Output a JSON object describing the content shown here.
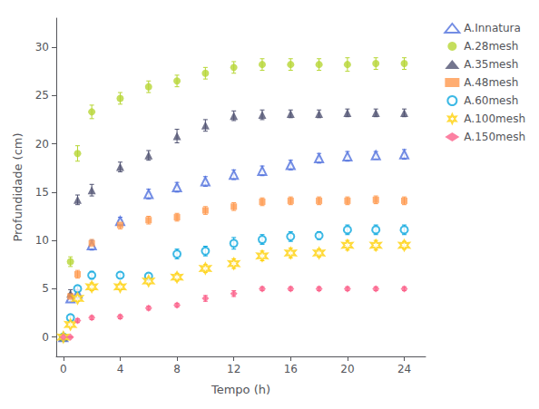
{
  "chart_data": {
    "type": "scatter",
    "xlabel": "Tempo (h)",
    "ylabel": "Profundidade (cm)",
    "xlim": [
      -0.5,
      25.5
    ],
    "ylim": [
      -2,
      33
    ],
    "xticks": [
      0,
      4,
      8,
      12,
      16,
      20,
      24
    ],
    "yticks": [
      0,
      5,
      10,
      15,
      20,
      25,
      30
    ],
    "grid": false,
    "legend": "right",
    "x": [
      0,
      0.5,
      1,
      2,
      4,
      6,
      8,
      10,
      12,
      14,
      16,
      18,
      20,
      22,
      24
    ],
    "series": [
      {
        "name": "A.Innatura",
        "marker": "triangle-open",
        "values": [
          0,
          4.0,
          4.5,
          9.5,
          12.0,
          14.8,
          15.5,
          16.1,
          16.8,
          17.2,
          17.8,
          18.5,
          18.7,
          18.8,
          18.9
        ],
        "yerr": [
          0,
          0.3,
          0.4,
          0.5,
          0.4,
          0.5,
          0.5,
          0.5,
          0.5,
          0.5,
          0.5,
          0.5,
          0.5,
          0.4,
          0.5
        ]
      },
      {
        "name": "A.28mesh",
        "marker": "circle",
        "values": [
          0,
          7.8,
          19.0,
          23.3,
          24.7,
          25.9,
          26.5,
          27.3,
          27.9,
          28.2,
          28.2,
          28.2,
          28.2,
          28.3,
          28.3
        ],
        "yerr": [
          0,
          0.5,
          0.8,
          0.7,
          0.6,
          0.6,
          0.6,
          0.6,
          0.6,
          0.6,
          0.6,
          0.6,
          0.7,
          0.6,
          0.6
        ]
      },
      {
        "name": "A.35mesh",
        "marker": "triangle",
        "values": [
          0,
          4.5,
          14.2,
          15.2,
          17.6,
          18.8,
          20.8,
          21.9,
          22.9,
          23.0,
          23.1,
          23.1,
          23.2,
          23.2,
          23.2
        ],
        "yerr": [
          0,
          0.4,
          0.5,
          0.6,
          0.5,
          0.5,
          0.7,
          0.6,
          0.5,
          0.5,
          0.4,
          0.4,
          0.4,
          0.4,
          0.4
        ]
      },
      {
        "name": "A.48mesh",
        "marker": "square",
        "values": [
          0,
          4.2,
          6.5,
          9.7,
          11.6,
          12.1,
          12.4,
          13.1,
          13.5,
          14.0,
          14.1,
          14.1,
          14.1,
          14.2,
          14.1
        ],
        "yerr": [
          0,
          0.3,
          0.4,
          0.4,
          0.4,
          0.4,
          0.4,
          0.4,
          0.4,
          0.4,
          0.4,
          0.4,
          0.4,
          0.4,
          0.4
        ]
      },
      {
        "name": "A.60mesh",
        "marker": "circle-open",
        "values": [
          0,
          2.0,
          5.0,
          6.4,
          6.4,
          6.3,
          8.6,
          8.9,
          9.7,
          10.1,
          10.4,
          10.5,
          11.1,
          11.1,
          11.1
        ],
        "yerr": [
          0,
          0.3,
          0.3,
          0.4,
          0.3,
          0.3,
          0.5,
          0.5,
          0.6,
          0.5,
          0.5,
          0.4,
          0.5,
          0.5,
          0.5
        ]
      },
      {
        "name": "A.100mesh",
        "marker": "star-open",
        "values": [
          0,
          1.3,
          4.0,
          5.2,
          5.2,
          5.8,
          6.2,
          7.1,
          7.6,
          8.4,
          8.7,
          8.7,
          9.5,
          9.5,
          9.5
        ],
        "yerr": [
          0,
          0.2,
          0.3,
          0.4,
          0.3,
          0.3,
          0.4,
          0.4,
          0.5,
          0.5,
          0.5,
          0.4,
          0.5,
          0.5,
          0.4
        ]
      },
      {
        "name": "A.150mesh",
        "marker": "diamond",
        "values": [
          0,
          0.0,
          1.7,
          2.0,
          2.1,
          3.0,
          3.3,
          4.0,
          4.5,
          5.0,
          5.0,
          5.0,
          5.0,
          5.0,
          5.0
        ],
        "yerr": [
          0,
          0.0,
          0.2,
          0.2,
          0.2,
          0.2,
          0.2,
          0.3,
          0.3,
          0.2,
          0.2,
          0.2,
          0.2,
          0.2,
          0.2
        ]
      }
    ]
  }
}
